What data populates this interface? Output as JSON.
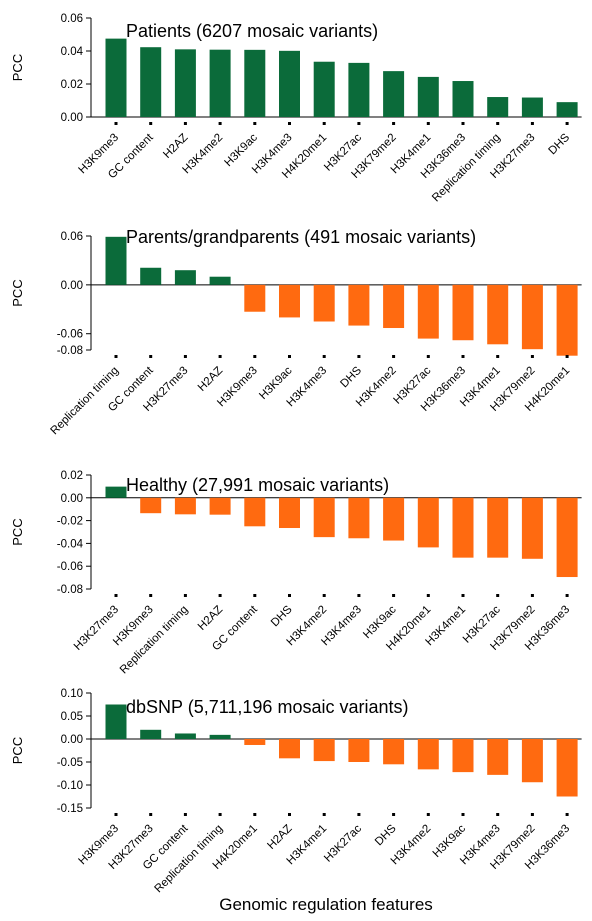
{
  "figure": {
    "xlabel": "Genomic regulation features"
  },
  "colors": {
    "positive": "#0b6b3a",
    "negative": "#ff6a10"
  },
  "chart_data": [
    {
      "type": "bar",
      "title": "Patients (6207 mosaic variants)",
      "ylabel": "PCC",
      "ylim": [
        0,
        0.06
      ],
      "yticks": [
        "0.00",
        "0.02",
        "0.04",
        "0.06"
      ],
      "categories": [
        "H3K9me3",
        "GC content",
        "H2AZ",
        "H3K4me2",
        "H3K9ac",
        "H3K4me3",
        "H4K20me1",
        "H3K27ac",
        "H3K79me2",
        "H3K4me1",
        "H3K36me3",
        "Replication timing",
        "H3K27me3",
        "DHS"
      ],
      "values": [
        0.0475,
        0.0423,
        0.041,
        0.0408,
        0.0407,
        0.0401,
        0.0335,
        0.0328,
        0.0278,
        0.0243,
        0.0218,
        0.0121,
        0.0118,
        0.009
      ]
    },
    {
      "type": "bar",
      "title": "Parents/grandparents (491 mosaic variants)",
      "ylabel": "PCC",
      "ylim": [
        -0.08,
        0.06
      ],
      "yticks": [
        "-0.08",
        "-0.06",
        "0.00",
        "0.06"
      ],
      "categories": [
        "Replication timing",
        "GC content",
        "H3K27me3",
        "H2AZ",
        "H3K9me3",
        "H3K9ac",
        "H3K4me3",
        "DHS",
        "H3K4me2",
        "H3K27ac",
        "H3K36me3",
        "H3K4me1",
        "H3K79me2",
        "H4K20me1"
      ],
      "values": [
        0.059,
        0.021,
        0.018,
        0.01,
        -0.033,
        -0.04,
        -0.045,
        -0.05,
        -0.053,
        -0.066,
        -0.068,
        -0.073,
        -0.079,
        -0.087
      ]
    },
    {
      "type": "bar",
      "title": "Healthy (27,991 mosaic variants)",
      "ylabel": "PCC",
      "ylim": [
        -0.08,
        0.02
      ],
      "yticks": [
        "-0.08",
        "-0.06",
        "-0.04",
        "-0.02",
        "0.00",
        "0.02"
      ],
      "categories": [
        "H3K27me3",
        "H3K9me3",
        "Replication timing",
        "H2AZ",
        "GC content",
        "DHS",
        "H3K4me2",
        "H3K4me3",
        "H3K9ac",
        "H4K20me1",
        "H3K4me1",
        "H3K27ac",
        "H3K79me2",
        "H3K36me3"
      ],
      "values": [
        0.0098,
        -0.0135,
        -0.0145,
        -0.0148,
        -0.025,
        -0.0265,
        -0.0345,
        -0.0355,
        -0.0375,
        -0.0435,
        -0.0525,
        -0.0525,
        -0.0535,
        -0.0695
      ]
    },
    {
      "type": "bar",
      "title": "dbSNP (5,711,196 mosaic variants)",
      "ylabel": "PCC",
      "ylim": [
        -0.15,
        0.1
      ],
      "yticks": [
        "-0.15",
        "-0.10",
        "-0.05",
        "0.00",
        "0.05",
        "0.10"
      ],
      "categories": [
        "H3K9me3",
        "H3K27me3",
        "GC content",
        "Replication timing",
        "H4K20me1",
        "H2AZ",
        "H3K4me1",
        "H3K27ac",
        "DHS",
        "H3K4me2",
        "H3K9ac",
        "H3K4me3",
        "H3K79me2",
        "H3K36me3"
      ],
      "values": [
        0.075,
        0.02,
        0.012,
        0.009,
        -0.013,
        -0.042,
        -0.048,
        -0.05,
        -0.055,
        -0.066,
        -0.072,
        -0.078,
        -0.094,
        -0.125
      ]
    }
  ]
}
